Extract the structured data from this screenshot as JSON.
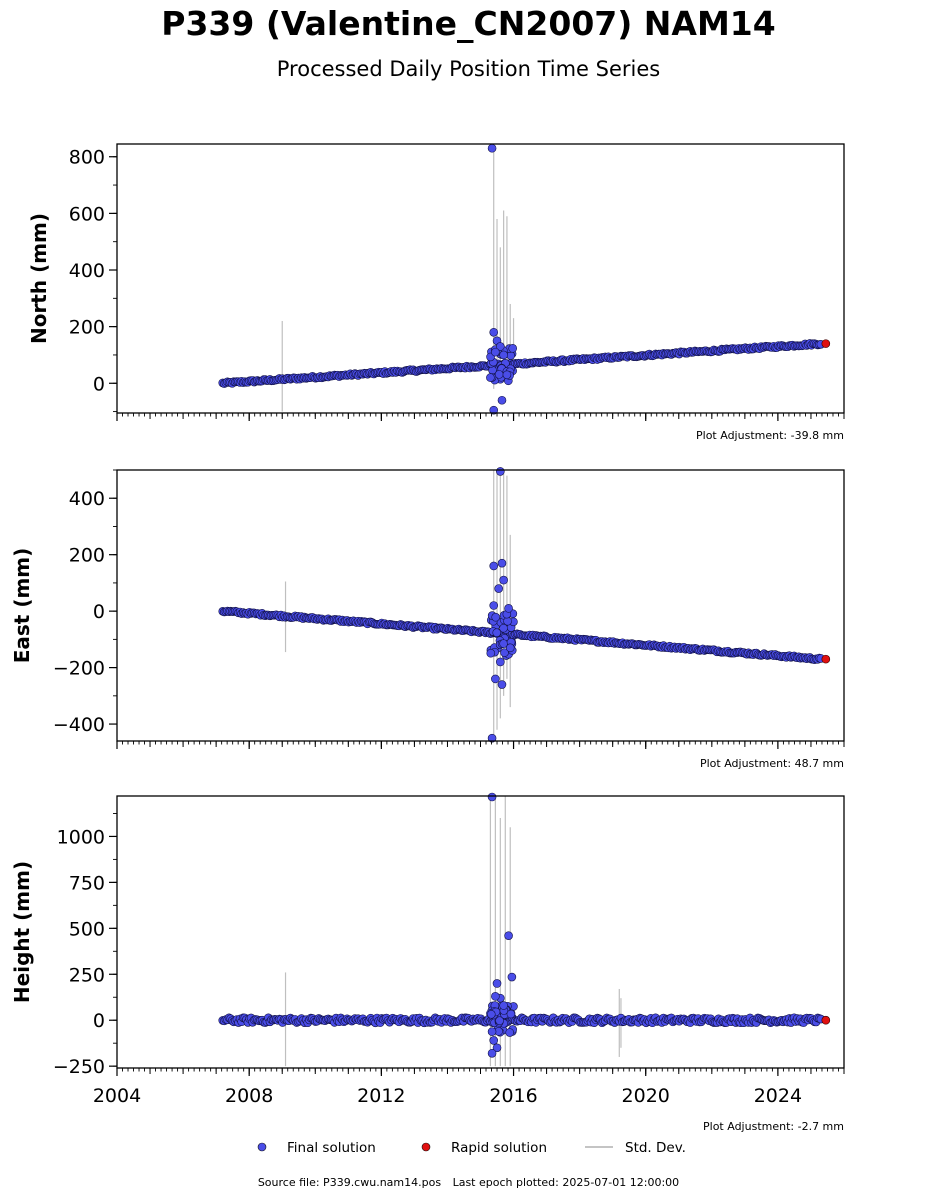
{
  "title": "P339 (Valentine_CN2007) NAM14",
  "subtitle": "Processed Daily Position Time Series",
  "footer": {
    "source": "Source file: P339.cwu.nam14.pos",
    "last_epoch": "Last epoch plotted: 2025-07-01 12:00:00"
  },
  "colors": {
    "final": "#4a4de8",
    "rapid": "#e01010",
    "stddev": "#b0b0b0"
  },
  "chart_data": [
    {
      "type": "scatter",
      "ylabel": "North (mm)",
      "xlim": [
        2004,
        2026
      ],
      "ylim": [
        -105,
        845
      ],
      "yticks": [
        0,
        200,
        400,
        600,
        800
      ],
      "ytick_labels": [
        "0",
        "200",
        "400",
        "600",
        "800"
      ],
      "xticks": [
        2004,
        2008,
        2012,
        2016,
        2020,
        2024
      ],
      "show_xtick_labels": false,
      "adjustment": "Plot Adjustment: -39.8 mm",
      "series": [
        {
          "name": "Final solution",
          "trend": {
            "x": [
              2007.2,
              2025.3
            ],
            "y": [
              0,
              140
            ]
          }
        },
        {
          "name": "Rapid solution",
          "points": [
            [
              2025.45,
              140
            ]
          ]
        }
      ],
      "outliers": [
        [
          2015.35,
          830
        ],
        [
          2015.4,
          180
        ],
        [
          2015.5,
          150
        ],
        [
          2015.6,
          130
        ],
        [
          2015.45,
          110
        ],
        [
          2015.7,
          100
        ],
        [
          2015.3,
          20
        ],
        [
          2015.65,
          -60
        ],
        [
          2015.4,
          -95
        ],
        [
          2015.8,
          30
        ]
      ],
      "stddev_bars": [
        [
          2009.0,
          -100,
          220
        ],
        [
          2015.4,
          -20,
          840
        ],
        [
          2015.5,
          10,
          580
        ],
        [
          2015.6,
          30,
          480
        ],
        [
          2015.7,
          20,
          610
        ],
        [
          2015.8,
          40,
          590
        ],
        [
          2015.9,
          40,
          280
        ],
        [
          2016.0,
          40,
          230
        ]
      ]
    },
    {
      "type": "scatter",
      "ylabel": "East (mm)",
      "xlim": [
        2004,
        2026
      ],
      "ylim": [
        -460,
        500
      ],
      "yticks": [
        -400,
        -200,
        0,
        200,
        400
      ],
      "ytick_labels": [
        "−400",
        "−200",
        "0",
        "200",
        "400"
      ],
      "xticks": [
        2004,
        2008,
        2012,
        2016,
        2020,
        2024
      ],
      "show_xtick_labels": false,
      "adjustment": "Plot Adjustment: 48.7 mm",
      "series": [
        {
          "name": "Final solution",
          "trend": {
            "x": [
              2007.2,
              2025.3
            ],
            "y": [
              0,
              -170
            ]
          }
        },
        {
          "name": "Rapid solution",
          "points": [
            [
              2025.45,
              -170
            ]
          ]
        }
      ],
      "outliers": [
        [
          2015.6,
          495
        ],
        [
          2015.65,
          170
        ],
        [
          2015.4,
          160
        ],
        [
          2015.7,
          110
        ],
        [
          2015.55,
          80
        ],
        [
          2015.85,
          10
        ],
        [
          2015.4,
          20
        ],
        [
          2015.6,
          -180
        ],
        [
          2015.45,
          -240
        ],
        [
          2015.65,
          -260
        ],
        [
          2015.35,
          -450
        ],
        [
          2015.9,
          -130
        ]
      ],
      "stddev_bars": [
        [
          2009.1,
          -145,
          105
        ],
        [
          2015.4,
          -460,
          500
        ],
        [
          2015.5,
          -420,
          500
        ],
        [
          2015.6,
          -380,
          500
        ],
        [
          2015.7,
          -300,
          500
        ],
        [
          2015.8,
          -240,
          480
        ],
        [
          2015.9,
          -340,
          270
        ]
      ]
    },
    {
      "type": "scatter",
      "ylabel": "Height (mm)",
      "xlabel": "",
      "xlim": [
        2004,
        2026
      ],
      "ylim": [
        -260,
        1220
      ],
      "yticks": [
        -250,
        0,
        250,
        500,
        750,
        1000
      ],
      "ytick_labels": [
        "−250",
        "0",
        "250",
        "500",
        "750",
        "1000"
      ],
      "xticks": [
        2004,
        2008,
        2012,
        2016,
        2020,
        2024
      ],
      "xtick_labels": [
        "2004",
        "2008",
        "2012",
        "2016",
        "2020",
        "2024"
      ],
      "show_xtick_labels": true,
      "adjustment": "Plot Adjustment: -2.7 mm",
      "series": [
        {
          "name": "Final solution",
          "trend": {
            "x": [
              2007.2,
              2025.3
            ],
            "y": [
              0,
              0
            ]
          }
        },
        {
          "name": "Rapid solution",
          "points": [
            [
              2025.45,
              0
            ]
          ]
        }
      ],
      "outliers": [
        [
          2015.35,
          1215
        ],
        [
          2015.85,
          460
        ],
        [
          2015.95,
          235
        ],
        [
          2015.5,
          200
        ],
        [
          2015.6,
          120
        ],
        [
          2015.45,
          130
        ],
        [
          2015.7,
          80
        ],
        [
          2015.4,
          -110
        ],
        [
          2015.5,
          -150
        ],
        [
          2015.35,
          -180
        ]
      ],
      "stddev_bars": [
        [
          2009.1,
          -250,
          260
        ],
        [
          2015.3,
          -250,
          1220
        ],
        [
          2015.45,
          -250,
          1220
        ],
        [
          2015.6,
          -250,
          1100
        ],
        [
          2015.75,
          -250,
          1220
        ],
        [
          2015.9,
          -250,
          1050
        ],
        [
          2019.2,
          -200,
          170
        ],
        [
          2019.25,
          -150,
          120
        ]
      ]
    }
  ],
  "legend": {
    "items": [
      {
        "label": "Final solution",
        "kind": "dot",
        "color": "#4a4de8"
      },
      {
        "label": "Rapid solution",
        "kind": "dot",
        "color": "#e01010"
      },
      {
        "label": "Std. Dev.",
        "kind": "line",
        "color": "#b0b0b0"
      }
    ]
  }
}
